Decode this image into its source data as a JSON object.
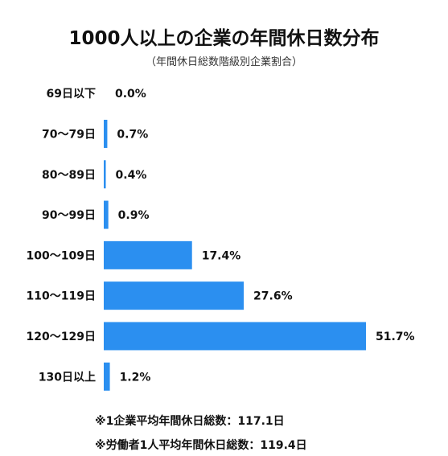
{
  "chart_data": {
    "type": "bar",
    "orientation": "horizontal",
    "title": "1000人以上の企業の年間休日数分布",
    "subtitle": "（年間休日総数階級別企業割合）",
    "categories": [
      "69日以下",
      "70〜79日",
      "80〜89日",
      "90〜99日",
      "100〜109日",
      "110〜119日",
      "120〜129日",
      "130日以上"
    ],
    "values": [
      0.0,
      0.7,
      0.4,
      0.9,
      17.4,
      27.6,
      51.7,
      1.2
    ],
    "value_labels": [
      "0.0%",
      "0.7%",
      "0.4%",
      "0.9%",
      "17.4%",
      "27.6%",
      "51.7%",
      "1.2%"
    ],
    "bar_color": "#2b8ff0",
    "xlim": [
      0,
      51.7
    ],
    "grid": false,
    "legend": "none"
  },
  "notes": [
    "※1企業平均年間休日総数：117.1日",
    "※労働者1人平均年間休日総数：119.4日"
  ]
}
